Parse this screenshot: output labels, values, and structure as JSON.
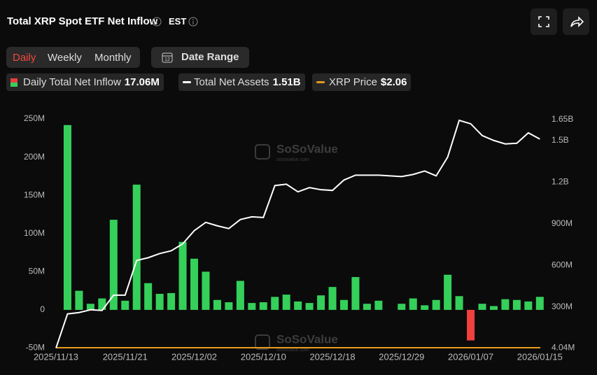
{
  "header": {
    "title": "Total XRP Spot ETF Net Inflow",
    "timezone": "EST"
  },
  "tabs": [
    "Daily",
    "Weekly",
    "Monthly"
  ],
  "date_range": "Date Range",
  "watermark": "SoSoValue",
  "watermark_url": "sosovalue.com",
  "chart_data": {
    "type": "bar_line",
    "categories": [
      "2025/11/13",
      null,
      null,
      null,
      null,
      null,
      "2025/11/21",
      null,
      null,
      null,
      null,
      null,
      "2025/12/02",
      null,
      null,
      null,
      null,
      null,
      "2025/12/10",
      null,
      null,
      null,
      null,
      null,
      "2025/12/18",
      null,
      null,
      null,
      null,
      null,
      "2025/12/29",
      null,
      null,
      null,
      null,
      null,
      "2026/01/07",
      null,
      null,
      null,
      null,
      null,
      "2026/01/15"
    ],
    "series": [
      {
        "name": "Daily Total Net Inflow",
        "latest": "17.06M",
        "color": "#35d05a",
        "negative_color": "#f0413e",
        "values": [
          null,
          242,
          25,
          8,
          15,
          118,
          12,
          164,
          35,
          21,
          22,
          89,
          67,
          50,
          13,
          10,
          38,
          9,
          10,
          17,
          20,
          11,
          9,
          19,
          30,
          13,
          43,
          8,
          12,
          0,
          8,
          15,
          6,
          13,
          46,
          18,
          -40,
          8,
          5,
          14,
          13,
          11,
          17.06
        ]
      },
      {
        "name": "Total Net Assets",
        "latest": "1.51B",
        "color": "#ffffff",
        "axis": "y2",
        "values": [
          4.04,
          250,
          260,
          280,
          275,
          385,
          385,
          635,
          655,
          685,
          705,
          755,
          850,
          910,
          885,
          865,
          930,
          950,
          945,
          1175,
          1185,
          1130,
          1160,
          1145,
          1140,
          1215,
          1250,
          1250,
          1250,
          1245,
          1240,
          1255,
          1280,
          1245,
          1380,
          1645,
          1620,
          1535,
          1500,
          1475,
          1480,
          1555,
          1510
        ]
      },
      {
        "name": "XRP Price",
        "latest": "$2.06",
        "color": "#e79b1f"
      }
    ],
    "ylim": [
      -50,
      250
    ],
    "yticks": [
      {
        "value": -50,
        "label": "-50M"
      },
      0,
      {
        "value": 50,
        "label": "50M"
      },
      {
        "value": 100,
        "label": "100M"
      },
      {
        "value": 150,
        "label": "150M"
      },
      {
        "value": 200,
        "label": "200M"
      },
      {
        "value": 250,
        "label": "250M"
      }
    ],
    "y2lim": [
      4.04,
      1650
    ],
    "y2ticks": [
      {
        "value": 4.04,
        "label": "4.04M"
      },
      {
        "value": 300,
        "label": "300M"
      },
      {
        "value": 600,
        "label": "600M"
      },
      {
        "value": 900,
        "label": "900M"
      },
      {
        "value": 1200,
        "label": "1.2B"
      },
      {
        "value": 1500,
        "label": "1.5B"
      },
      {
        "value": 1650,
        "label": "1.65B"
      }
    ]
  }
}
